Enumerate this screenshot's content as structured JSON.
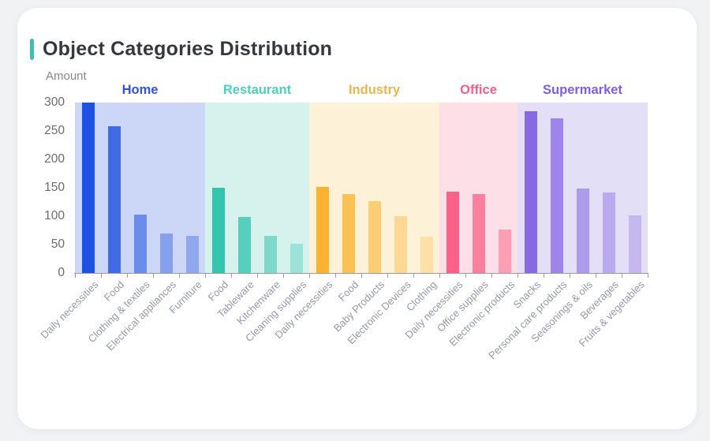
{
  "card": {
    "title": "Object Categories Distribution",
    "accent_color": "#3ec0b1",
    "title_color": "#35383e"
  },
  "chart_data": {
    "type": "bar",
    "title": "Object Categories Distribution",
    "xlabel": "",
    "ylabel": "Amount",
    "ylim": [
      0,
      300
    ],
    "y_ticks": [
      0,
      50,
      100,
      150,
      200,
      250,
      300
    ],
    "grid": false,
    "legend_position": "group labels above their shaded bands",
    "axis_color": "#999999",
    "y_tick_label_color": "#6b6b6b",
    "x_label_color": "#9598a6",
    "groups": [
      {
        "name": "Home",
        "label_color": "#3351e0",
        "bar_color": "#1e50e2",
        "band_color": "#ccd6f6",
        "bar_alphas": [
          1,
          0.8,
          0.55,
          0.4,
          0.34
        ],
        "categories": [
          "Daily necessities",
          "Food",
          "Clothing & textiles",
          "Electrical appliances",
          "Furniture"
        ],
        "values": [
          300,
          258,
          103,
          70,
          65
        ]
      },
      {
        "name": "Restaurant",
        "label_color": "#4fcfbb",
        "bar_color": "#35c4ae",
        "band_color": "#d6f2ec",
        "bar_alphas": [
          1,
          0.78,
          0.54,
          0.36
        ],
        "categories": [
          "Food",
          "Tableware",
          "Kitchenware",
          "Cleaning supplies"
        ],
        "values": [
          150,
          98,
          65,
          51
        ]
      },
      {
        "name": "Industry",
        "label_color": "#e9b452",
        "bar_color": "#fbb32f",
        "band_color": "#fdf1d7",
        "bar_alphas": [
          1,
          0.78,
          0.58,
          0.4,
          0.28
        ],
        "categories": [
          "Daily necessities",
          "Food",
          "Baby Products",
          "Electronic Devices",
          "Clothing"
        ],
        "values": [
          151,
          139,
          127,
          100,
          64
        ]
      },
      {
        "name": "Office",
        "label_color": "#f4608a",
        "bar_color": "#fb6189",
        "band_color": "#fcdfe7",
        "bar_alphas": [
          1,
          0.77,
          0.52
        ],
        "categories": [
          "Daily necessities",
          "Office supplies",
          "Electronic products"
        ],
        "values": [
          143,
          139,
          76
        ]
      },
      {
        "name": "Supermarket",
        "label_color": "#7f5ce6",
        "bar_color": "#8769e2",
        "band_color": "#e3dff7",
        "bar_alphas": [
          1,
          0.76,
          0.58,
          0.46,
          0.33
        ],
        "categories": [
          "Snacks",
          "Personal care products",
          "Seasonings & oils",
          "Beverages",
          "Fruits & vegetables"
        ],
        "values": [
          285,
          272,
          149,
          141,
          102
        ]
      }
    ]
  }
}
